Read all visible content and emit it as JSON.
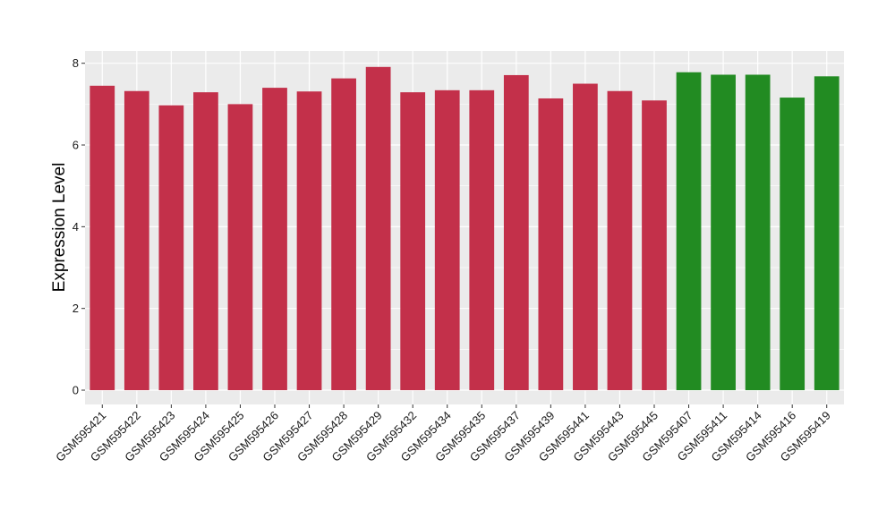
{
  "chart_data": {
    "type": "bar",
    "xlabel": "",
    "ylabel": "Expression Level",
    "ylim": [
      -0.35,
      8.3
    ],
    "yticks": [
      0,
      2,
      4,
      6,
      8
    ],
    "grid": true,
    "categories": [
      "GSM595421",
      "GSM595422",
      "GSM595423",
      "GSM595424",
      "GSM595425",
      "GSM595426",
      "GSM595427",
      "GSM595428",
      "GSM595429",
      "GSM595432",
      "GSM595434",
      "GSM595435",
      "GSM595437",
      "GSM595439",
      "GSM595441",
      "GSM595443",
      "GSM595445",
      "GSM595407",
      "GSM595411",
      "GSM595414",
      "GSM595416",
      "GSM595419"
    ],
    "values": [
      7.45,
      7.32,
      6.97,
      7.29,
      7.0,
      7.4,
      7.31,
      7.63,
      7.91,
      7.29,
      7.34,
      7.34,
      7.71,
      7.14,
      7.5,
      7.32,
      7.09,
      7.78,
      7.72,
      7.72,
      7.16,
      7.68
    ],
    "bar_colors": [
      "#c3304a",
      "#c3304a",
      "#c3304a",
      "#c3304a",
      "#c3304a",
      "#c3304a",
      "#c3304a",
      "#c3304a",
      "#c3304a",
      "#c3304a",
      "#c3304a",
      "#c3304a",
      "#c3304a",
      "#c3304a",
      "#c3304a",
      "#c3304a",
      "#c3304a",
      "#228b22",
      "#228b22",
      "#228b22",
      "#228b22",
      "#228b22"
    ],
    "colors": {
      "panel_background": "#ebebeb",
      "grid": "#ffffff",
      "group_1": "#c3304a",
      "group_2": "#228b22"
    }
  }
}
